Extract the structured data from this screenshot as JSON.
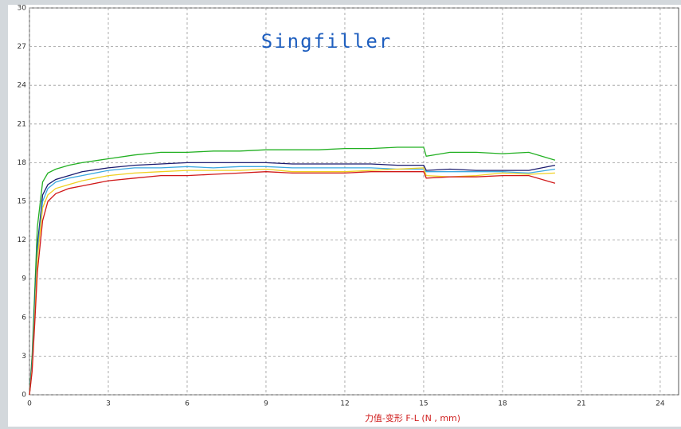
{
  "chart_data": {
    "type": "line",
    "title": "Singfiller",
    "x_label": "力值-变形 F-L    (N , mm)",
    "x": [
      0,
      0.1,
      0.2,
      0.3,
      0.5,
      0.7,
      1,
      1.5,
      2,
      3,
      4,
      5,
      6,
      7,
      8,
      9,
      10,
      11,
      12,
      13,
      14,
      15,
      15.1,
      16,
      17,
      18,
      19,
      20
    ],
    "series": [
      {
        "color": "#22b022",
        "values": [
          0,
          3,
          8,
          13,
          16.5,
          17.2,
          17.5,
          17.8,
          18,
          18.3,
          18.6,
          18.8,
          18.8,
          18.9,
          18.9,
          19,
          19,
          19,
          19.1,
          19.1,
          19.2,
          19.2,
          18.5,
          18.8,
          18.8,
          18.7,
          18.8,
          18.2
        ]
      },
      {
        "color": "#1a1a6e",
        "values": [
          0,
          2.5,
          7,
          11.5,
          15.5,
          16.3,
          16.7,
          17,
          17.3,
          17.6,
          17.8,
          17.9,
          18,
          18,
          18,
          18,
          17.9,
          17.9,
          17.9,
          17.9,
          17.8,
          17.8,
          17.4,
          17.5,
          17.4,
          17.4,
          17.4,
          17.8
        ]
      },
      {
        "color": "#3aa8e0",
        "values": [
          0,
          2.2,
          6.5,
          11,
          15,
          16,
          16.5,
          16.8,
          17,
          17.4,
          17.6,
          17.6,
          17.7,
          17.6,
          17.7,
          17.7,
          17.6,
          17.6,
          17.6,
          17.6,
          17.5,
          17.5,
          17.3,
          17.3,
          17.3,
          17.3,
          17.2,
          17.5
        ]
      },
      {
        "color": "#f0d020",
        "values": [
          0,
          2,
          6,
          10.5,
          14.5,
          15.5,
          16,
          16.3,
          16.6,
          17,
          17.2,
          17.3,
          17.4,
          17.4,
          17.4,
          17.5,
          17.3,
          17.3,
          17.3,
          17.4,
          17.5,
          17.6,
          17,
          16.9,
          17,
          17.2,
          17.1,
          17.2
        ]
      },
      {
        "color": "#d01818",
        "values": [
          0,
          1.8,
          5.5,
          9.5,
          13.5,
          15,
          15.6,
          16,
          16.2,
          16.6,
          16.8,
          17,
          17,
          17.1,
          17.2,
          17.3,
          17.2,
          17.2,
          17.2,
          17.3,
          17.3,
          17.3,
          16.8,
          16.9,
          16.9,
          17,
          17,
          16.4
        ]
      }
    ],
    "xlim": [
      0,
      24.7
    ],
    "ylim": [
      0,
      30
    ],
    "xticks": [
      0,
      3,
      6,
      9,
      12,
      15,
      18,
      21,
      24
    ],
    "yticks": [
      0,
      3,
      6,
      9,
      12,
      15,
      18,
      21,
      24,
      27,
      30
    ],
    "grid": true
  }
}
